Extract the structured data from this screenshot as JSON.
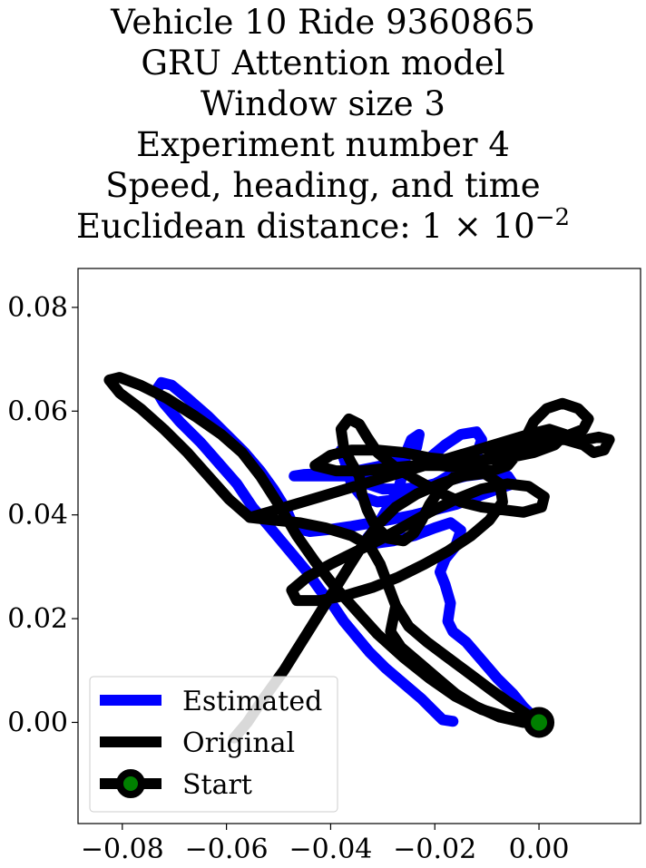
{
  "chart_data": {
    "type": "line",
    "title_lines": [
      "Vehicle 10 Ride 9360865",
      "GRU Attention model",
      "Window size 3",
      "Experiment number 4",
      "Speed, heading, and time"
    ],
    "title_last_prefix": "Euclidean distance: 1 × 10",
    "title_last_exponent": "−2",
    "xlabel": "",
    "ylabel": "",
    "xlim": [
      -0.0885,
      0.0195
    ],
    "ylim": [
      -0.0195,
      0.0875
    ],
    "xticks": [
      -0.08,
      -0.06,
      -0.04,
      -0.02,
      0.0
    ],
    "xtick_labels": [
      "−0.08",
      "−0.06",
      "−0.04",
      "−0.02",
      "0.00"
    ],
    "yticks": [
      0.0,
      0.02,
      0.04,
      0.06,
      0.08
    ],
    "ytick_labels": [
      "0.00",
      "0.02",
      "0.04",
      "0.06",
      "0.08"
    ],
    "grid": false,
    "legend_position": "lower-left",
    "series": [
      {
        "name": "Estimated",
        "color": "#0000ff",
        "points": [
          [
            -0.0165,
            0.0002
          ],
          [
            -0.0185,
            0.0005
          ],
          [
            -0.0205,
            0.0025
          ],
          [
            -0.0225,
            0.0045
          ],
          [
            -0.026,
            0.0075
          ],
          [
            -0.0295,
            0.0105
          ],
          [
            -0.0325,
            0.0135
          ],
          [
            -0.035,
            0.0165
          ],
          [
            -0.0375,
            0.0195
          ],
          [
            -0.0395,
            0.0225
          ],
          [
            -0.042,
            0.0255
          ],
          [
            -0.0445,
            0.029
          ],
          [
            -0.047,
            0.032
          ],
          [
            -0.0495,
            0.035
          ],
          [
            -0.052,
            0.038
          ],
          [
            -0.055,
            0.0415
          ],
          [
            -0.058,
            0.046
          ],
          [
            -0.0615,
            0.05
          ],
          [
            -0.065,
            0.054
          ],
          [
            -0.069,
            0.058
          ],
          [
            -0.072,
            0.0615
          ],
          [
            -0.0735,
            0.064
          ],
          [
            -0.0725,
            0.0655
          ],
          [
            -0.0705,
            0.065
          ],
          [
            -0.0675,
            0.0625
          ],
          [
            -0.0635,
            0.059
          ],
          [
            -0.06,
            0.0555
          ],
          [
            -0.0565,
            0.052
          ],
          [
            -0.0535,
            0.0485
          ],
          [
            -0.051,
            0.045
          ],
          [
            -0.0485,
            0.041
          ],
          [
            -0.047,
            0.0375
          ],
          [
            -0.044,
            0.0368
          ],
          [
            -0.04,
            0.0372
          ],
          [
            -0.036,
            0.0378
          ],
          [
            -0.032,
            0.0385
          ],
          [
            -0.028,
            0.0392
          ],
          [
            -0.024,
            0.04
          ],
          [
            -0.02,
            0.041
          ],
          [
            -0.016,
            0.042
          ],
          [
            -0.012,
            0.0435
          ],
          [
            -0.008,
            0.045
          ],
          [
            -0.005,
            0.046
          ],
          [
            -0.006,
            0.0475
          ],
          [
            -0.01,
            0.048
          ],
          [
            -0.014,
            0.0475
          ],
          [
            -0.018,
            0.0465
          ],
          [
            -0.022,
            0.0455
          ],
          [
            -0.026,
            0.045
          ],
          [
            -0.03,
            0.045
          ],
          [
            -0.033,
            0.046
          ],
          [
            -0.035,
            0.0485
          ],
          [
            -0.037,
            0.0505
          ],
          [
            -0.038,
            0.0525
          ],
          [
            -0.037,
            0.0495
          ],
          [
            -0.036,
            0.046
          ],
          [
            -0.034,
            0.0435
          ],
          [
            -0.031,
            0.0425
          ],
          [
            -0.027,
            0.043
          ],
          [
            -0.023,
            0.0445
          ],
          [
            -0.019,
            0.0465
          ],
          [
            -0.015,
            0.049
          ],
          [
            -0.012,
            0.0515
          ],
          [
            -0.011,
            0.0545
          ],
          [
            -0.012,
            0.056
          ],
          [
            -0.015,
            0.0555
          ],
          [
            -0.018,
            0.0535
          ],
          [
            -0.021,
            0.051
          ],
          [
            -0.024,
            0.0495
          ],
          [
            -0.027,
            0.0485
          ],
          [
            -0.03,
            0.0478
          ],
          [
            -0.034,
            0.0475
          ],
          [
            -0.039,
            0.0475
          ],
          [
            -0.044,
            0.0475
          ],
          [
            -0.047,
            0.0475
          ],
          [
            -0.045,
            0.0478
          ],
          [
            -0.04,
            0.048
          ],
          [
            -0.035,
            0.0485
          ],
          [
            -0.03,
            0.0495
          ],
          [
            -0.026,
            0.051
          ],
          [
            -0.0235,
            0.053
          ],
          [
            -0.023,
            0.0555
          ],
          [
            -0.0245,
            0.0545
          ],
          [
            -0.0255,
            0.052
          ],
          [
            -0.026,
            0.0485
          ],
          [
            -0.027,
            0.045
          ],
          [
            -0.029,
            0.0415
          ],
          [
            -0.031,
            0.038
          ],
          [
            -0.033,
            0.0355
          ],
          [
            -0.0315,
            0.0345
          ],
          [
            -0.028,
            0.035
          ],
          [
            -0.024,
            0.036
          ],
          [
            -0.02,
            0.0375
          ],
          [
            -0.017,
            0.0385
          ],
          [
            -0.015,
            0.037
          ],
          [
            -0.016,
            0.034
          ],
          [
            -0.018,
            0.0315
          ],
          [
            -0.019,
            0.029
          ],
          [
            -0.018,
            0.0265
          ],
          [
            -0.017,
            0.023
          ],
          [
            -0.0175,
            0.0195
          ],
          [
            -0.0165,
            0.0175
          ],
          [
            -0.014,
            0.0155
          ],
          [
            -0.011,
            0.012
          ],
          [
            -0.008,
            0.0085
          ],
          [
            -0.005,
            0.0055
          ],
          [
            -0.003,
            0.003
          ],
          [
            -0.001,
            0.001
          ],
          [
            0.0,
            0.0
          ]
        ]
      },
      {
        "name": "Original",
        "color": "#000000",
        "points": [
          [
            0.0,
            0.0
          ],
          [
            -0.003,
            0.002
          ],
          [
            -0.006,
            0.004
          ],
          [
            -0.0095,
            0.0065
          ],
          [
            -0.0135,
            0.0095
          ],
          [
            -0.0175,
            0.0125
          ],
          [
            -0.0215,
            0.0155
          ],
          [
            -0.025,
            0.0185
          ],
          [
            -0.0275,
            0.0225
          ],
          [
            -0.029,
            0.0265
          ],
          [
            -0.0305,
            0.0305
          ],
          [
            -0.0325,
            0.034
          ],
          [
            -0.036,
            0.036
          ],
          [
            -0.041,
            0.0375
          ],
          [
            -0.046,
            0.0385
          ],
          [
            -0.051,
            0.039
          ],
          [
            -0.0555,
            0.0395
          ],
          [
            -0.052,
            0.0405
          ],
          [
            -0.047,
            0.042
          ],
          [
            -0.042,
            0.0435
          ],
          [
            -0.037,
            0.045
          ],
          [
            -0.032,
            0.0465
          ],
          [
            -0.027,
            0.048
          ],
          [
            -0.022,
            0.0495
          ],
          [
            -0.017,
            0.051
          ],
          [
            -0.012,
            0.0525
          ],
          [
            -0.007,
            0.054
          ],
          [
            -0.002,
            0.0555
          ],
          [
            0.002,
            0.0565
          ],
          [
            0.005,
            0.0555
          ],
          [
            0.003,
            0.0535
          ],
          [
            -0.001,
            0.052
          ],
          [
            -0.006,
            0.051
          ],
          [
            -0.011,
            0.0505
          ],
          [
            -0.016,
            0.0505
          ],
          [
            -0.021,
            0.051
          ],
          [
            -0.026,
            0.052
          ],
          [
            -0.031,
            0.0525
          ],
          [
            -0.036,
            0.0525
          ],
          [
            -0.04,
            0.0515
          ],
          [
            -0.043,
            0.0495
          ],
          [
            -0.039,
            0.0485
          ],
          [
            -0.034,
            0.0485
          ],
          [
            -0.029,
            0.049
          ],
          [
            -0.024,
            0.0495
          ],
          [
            -0.019,
            0.0495
          ],
          [
            -0.014,
            0.049
          ],
          [
            -0.009,
            0.0485
          ],
          [
            -0.006,
            0.0495
          ],
          [
            -0.004,
            0.052
          ],
          [
            -0.0025,
            0.055
          ],
          [
            -0.001,
            0.058
          ],
          [
            0.0015,
            0.0605
          ],
          [
            0.0045,
            0.0615
          ],
          [
            0.0075,
            0.0605
          ],
          [
            0.0095,
            0.0585
          ],
          [
            0.0085,
            0.0565
          ],
          [
            0.006,
            0.0555
          ],
          [
            0.009,
            0.0545
          ],
          [
            0.0115,
            0.055
          ],
          [
            0.0135,
            0.0545
          ],
          [
            0.0125,
            0.0525
          ],
          [
            0.0105,
            0.052
          ],
          [
            0.0085,
            0.0535
          ],
          [
            0.005,
            0.0545
          ],
          [
            0.001,
            0.0545
          ],
          [
            -0.003,
            0.0535
          ],
          [
            -0.0075,
            0.052
          ],
          [
            -0.012,
            0.05
          ],
          [
            -0.016,
            0.0475
          ],
          [
            -0.019,
            0.045
          ],
          [
            -0.021,
            0.042
          ],
          [
            -0.0225,
            0.039
          ],
          [
            -0.024,
            0.0365
          ],
          [
            -0.026,
            0.035
          ],
          [
            -0.029,
            0.0355
          ],
          [
            -0.0315,
            0.038
          ],
          [
            -0.033,
            0.041
          ],
          [
            -0.034,
            0.044
          ],
          [
            -0.0345,
            0.0475
          ],
          [
            -0.036,
            0.05
          ],
          [
            -0.0375,
            0.053
          ],
          [
            -0.038,
            0.0565
          ],
          [
            -0.0365,
            0.0585
          ],
          [
            -0.0345,
            0.0575
          ],
          [
            -0.033,
            0.055
          ],
          [
            -0.031,
            0.052
          ],
          [
            -0.028,
            0.0495
          ],
          [
            -0.024,
            0.047
          ],
          [
            -0.0195,
            0.0445
          ],
          [
            -0.015,
            0.0425
          ],
          [
            -0.011,
            0.0415
          ],
          [
            -0.007,
            0.041
          ],
          [
            -0.003,
            0.0405
          ],
          [
            0.0005,
            0.0415
          ],
          [
            0.001,
            0.0435
          ],
          [
            -0.002,
            0.0455
          ],
          [
            -0.006,
            0.046
          ],
          [
            -0.011,
            0.045
          ],
          [
            -0.016,
            0.043
          ],
          [
            -0.021,
            0.0405
          ],
          [
            -0.0255,
            0.038
          ],
          [
            -0.03,
            0.0355
          ],
          [
            -0.035,
            0.033
          ],
          [
            -0.04,
            0.0305
          ],
          [
            -0.0445,
            0.028
          ],
          [
            -0.0475,
            0.0255
          ],
          [
            -0.0465,
            0.0235
          ],
          [
            -0.042,
            0.0235
          ],
          [
            -0.037,
            0.0245
          ],
          [
            -0.032,
            0.026
          ],
          [
            -0.027,
            0.028
          ],
          [
            -0.022,
            0.0305
          ],
          [
            -0.0175,
            0.033
          ],
          [
            -0.013,
            0.036
          ],
          [
            -0.0095,
            0.039
          ],
          [
            -0.007,
            0.0425
          ],
          [
            -0.0075,
            0.046
          ],
          [
            -0.0105,
            0.048
          ],
          [
            -0.0145,
            0.0475
          ],
          [
            -0.019,
            0.046
          ],
          [
            -0.0235,
            0.044
          ],
          [
            -0.0275,
            0.0415
          ],
          [
            -0.031,
            0.038
          ],
          [
            -0.034,
            0.034
          ],
          [
            -0.0365,
            0.03
          ],
          [
            -0.039,
            0.026
          ],
          [
            -0.0415,
            0.022
          ],
          [
            -0.044,
            0.018
          ],
          [
            -0.0465,
            0.014
          ],
          [
            -0.049,
            0.01
          ],
          [
            -0.0515,
            0.0065
          ],
          [
            -0.054,
            0.003
          ],
          [
            -0.056,
            0.0
          ],
          [
            -0.0585,
            -0.003
          ]
        ],
        "points_tail_a": [
          [
            -0.0275,
            0.0225
          ],
          [
            -0.0285,
            0.0175
          ],
          [
            -0.0265,
            0.0145
          ],
          [
            -0.023,
            0.0115
          ],
          [
            -0.0195,
            0.0085
          ],
          [
            -0.016,
            0.0055
          ],
          [
            -0.012,
            0.003
          ],
          [
            -0.0075,
            0.001
          ],
          [
            -0.003,
            0.0
          ],
          [
            0.0,
            0.0
          ]
        ],
        "points_loop_b": [
          [
            -0.0555,
            0.0395
          ],
          [
            -0.0595,
            0.043
          ],
          [
            -0.0635,
            0.0475
          ],
          [
            -0.0675,
            0.052
          ],
          [
            -0.072,
            0.0565
          ],
          [
            -0.0765,
            0.0605
          ],
          [
            -0.0805,
            0.0635
          ],
          [
            -0.0825,
            0.066
          ],
          [
            -0.0805,
            0.0665
          ],
          [
            -0.0765,
            0.065
          ],
          [
            -0.0715,
            0.0625
          ],
          [
            -0.066,
            0.059
          ],
          [
            -0.061,
            0.0555
          ],
          [
            -0.057,
            0.052
          ],
          [
            -0.0535,
            0.0475
          ],
          [
            -0.05,
            0.042
          ],
          [
            -0.0465,
            0.036
          ],
          [
            -0.043,
            0.031
          ],
          [
            -0.0395,
            0.0265
          ],
          [
            -0.0355,
            0.022
          ],
          [
            -0.031,
            0.017
          ],
          [
            -0.026,
            0.0125
          ],
          [
            -0.021,
            0.0085
          ],
          [
            -0.016,
            0.005
          ],
          [
            -0.011,
            0.0025
          ],
          [
            -0.006,
            0.001
          ],
          [
            0.0,
            0.0
          ]
        ]
      }
    ],
    "start": {
      "name": "Start",
      "x": 0.0,
      "y": 0.0,
      "edge_color": "#000000",
      "face_color": "#008000"
    },
    "legend": [
      "Estimated",
      "Original",
      "Start"
    ]
  }
}
